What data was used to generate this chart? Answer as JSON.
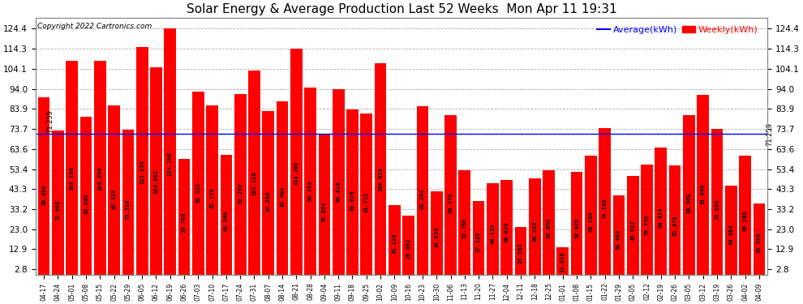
{
  "title": "Solar Energy & Average Production Last 52 Weeks  Mon Apr 11 19:31",
  "copyright": "Copyright 2022 Cartronics.com",
  "legend_avg": "Average(kWh)",
  "legend_weekly": "Weekly(kWh)",
  "average_line": 71.259,
  "bar_color": "#ff0000",
  "avg_line_color": "#0000ff",
  "avg_label_color": "#000000",
  "background_color": "#ffffff",
  "plot_bg_color": "#ffffff",
  "grid_color": "#999999",
  "yticks": [
    2.8,
    12.9,
    23.0,
    33.2,
    43.3,
    53.4,
    63.6,
    73.7,
    83.9,
    94.0,
    104.1,
    114.3,
    124.4
  ],
  "categories": [
    "04-17",
    "04-24",
    "05-01",
    "05-08",
    "05-15",
    "05-22",
    "05-29",
    "06-05",
    "06-12",
    "06-19",
    "06-26",
    "07-03",
    "07-10",
    "07-17",
    "07-24",
    "07-31",
    "08-07",
    "08-14",
    "08-21",
    "08-28",
    "09-04",
    "09-11",
    "09-18",
    "09-25",
    "10-02",
    "10-09",
    "10-16",
    "10-23",
    "10-30",
    "11-06",
    "11-13",
    "11-20",
    "11-27",
    "12-04",
    "12-11",
    "12-18",
    "12-25",
    "01-01",
    "01-08",
    "01-15",
    "01-22",
    "01-29",
    "02-05",
    "02-12",
    "02-19",
    "02-26",
    "03-05",
    "03-12",
    "03-19",
    "03-26",
    "04-02",
    "04-09"
  ],
  "values": [
    89.896,
    72.908,
    108.108,
    80.04,
    108.096,
    85.52,
    73.52,
    115.256,
    104.844,
    124.396,
    58.708,
    92.532,
    85.736,
    60.64,
    91.296,
    103.128,
    82.88,
    87.664,
    114.28,
    94.704,
    70.664,
    93.816,
    83.676,
    81.712,
    106.836,
    35.124,
    29.892,
    85.204,
    42.016,
    80.776,
    52.76,
    37.12,
    46.132,
    48.024,
    24.084,
    48.524,
    52.652,
    13.828,
    52.028,
    60.184,
    74.188,
    39.992,
    49.912,
    55.72,
    64.424,
    55.476,
    80.9,
    91.096,
    73.696,
    44.864,
    60.288,
    35.92
  ],
  "value_label_fontsize": 5.0,
  "tick_fontsize": 7.5,
  "xtick_fontsize": 5.5,
  "title_fontsize": 11,
  "copyright_fontsize": 6.5,
  "legend_fontsize": 8
}
